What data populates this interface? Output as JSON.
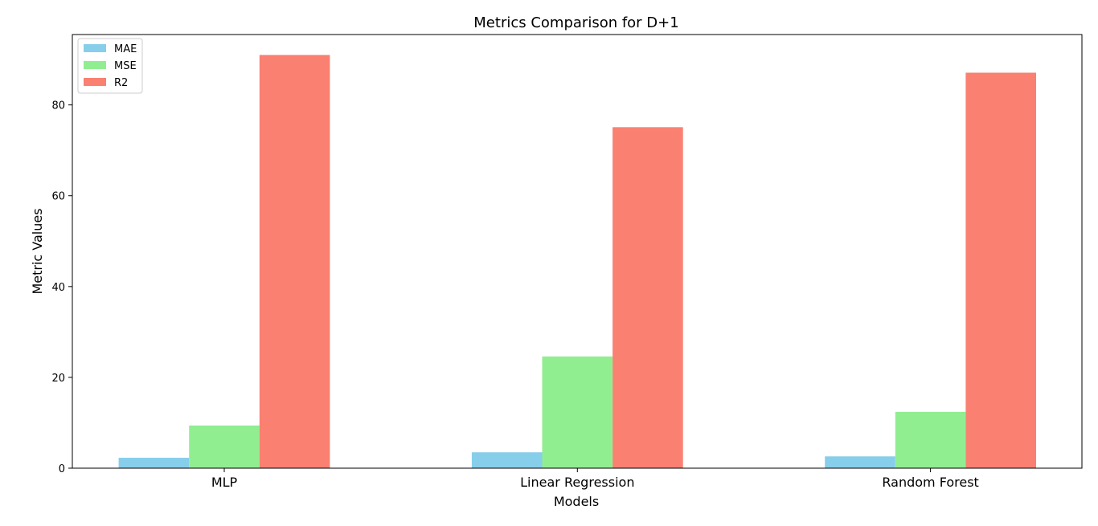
{
  "chart_data": {
    "type": "bar",
    "title": "Metrics Comparison for D+1",
    "xlabel": "Models",
    "ylabel": "Metric Values",
    "categories": [
      "MLP",
      "Linear Regression",
      "Random Forest"
    ],
    "series": [
      {
        "name": "MAE",
        "color": "#87ceeb",
        "values": [
          2.3,
          3.5,
          2.6
        ]
      },
      {
        "name": "MSE",
        "color": "#90ee90",
        "values": [
          9.4,
          24.6,
          12.4
        ]
      },
      {
        "name": "R2",
        "color": "#fa8072",
        "values": [
          91.0,
          75.1,
          87.1
        ]
      }
    ],
    "ylim": [
      0,
      95.5
    ],
    "yticks": [
      0,
      20,
      40,
      60,
      80
    ],
    "grid": false,
    "legend_position": "top-left"
  }
}
